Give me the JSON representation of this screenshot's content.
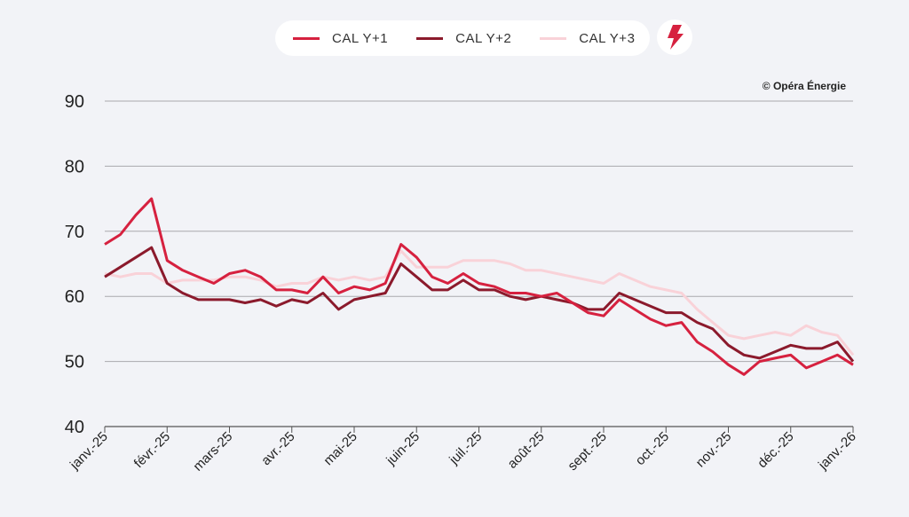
{
  "legend": {
    "items": [
      {
        "label": "CAL Y+1",
        "color": "#d6213f"
      },
      {
        "label": "CAL Y+2",
        "color": "#8b1a2c"
      },
      {
        "label": "CAL Y+3",
        "color": "#f9d2d8"
      }
    ],
    "icon": "lightning-bolt-icon"
  },
  "credit": "© Opéra Énergie",
  "chart_data": {
    "type": "line",
    "title": "",
    "xlabel": "",
    "ylabel": "",
    "ylim": [
      40,
      90
    ],
    "yticks": [
      40,
      50,
      60,
      70,
      80,
      90
    ],
    "grid": true,
    "legend_position": "top-center",
    "xtick_labels": [
      "janv.-25",
      "févr.-25",
      "mars-25",
      "avr.-25",
      "mai-25",
      "juin-25",
      "juil.-25",
      "août-25",
      "sept.-25",
      "oct.-25",
      "nov.-25",
      "déc.-25",
      "janv.-26"
    ],
    "x_unit": "months since janv.-25",
    "x_step": 0.25,
    "series": [
      {
        "name": "CAL Y+1",
        "color": "#d6213f",
        "values": [
          68,
          69.5,
          72.5,
          75,
          65.5,
          64,
          63,
          62,
          63.5,
          64,
          63,
          61,
          61,
          60.5,
          63,
          60.5,
          61.5,
          61,
          62,
          68,
          66,
          63,
          62,
          63.5,
          62,
          61.5,
          60.5,
          60.5,
          60,
          60.5,
          59,
          57.5,
          57,
          59.5,
          58,
          56.5,
          55.5,
          56,
          53,
          51.5,
          49.5,
          48,
          50,
          50.5,
          51,
          49,
          50,
          51,
          49.5
        ]
      },
      {
        "name": "CAL Y+2",
        "color": "#8b1a2c",
        "values": [
          63,
          64.5,
          66,
          67.5,
          62,
          60.5,
          59.5,
          59.5,
          59.5,
          59,
          59.5,
          58.5,
          59.5,
          59,
          60.5,
          58,
          59.5,
          60,
          60.5,
          65,
          63,
          61,
          61,
          62.5,
          61,
          61,
          60,
          59.5,
          60,
          59.5,
          59,
          58,
          58,
          60.5,
          59.5,
          58.5,
          57.5,
          57.5,
          56,
          55,
          52.5,
          51,
          50.5,
          51.5,
          52.5,
          52,
          52,
          53,
          50
        ]
      },
      {
        "name": "CAL Y+3",
        "color": "#f9d2d8",
        "values": [
          63.5,
          63,
          63.5,
          63.5,
          62,
          62.5,
          62.5,
          62.5,
          63,
          63,
          62.5,
          61.5,
          62,
          62,
          63,
          62.5,
          63,
          62.5,
          63,
          67,
          64.5,
          64.5,
          64.5,
          65.5,
          65.5,
          65.5,
          65,
          64,
          64,
          63.5,
          63,
          62.5,
          62,
          63.5,
          62.5,
          61.5,
          61,
          60.5,
          58,
          56,
          54,
          53.5,
          54,
          54.5,
          54,
          55.5,
          54.5,
          54,
          51
        ]
      }
    ]
  }
}
